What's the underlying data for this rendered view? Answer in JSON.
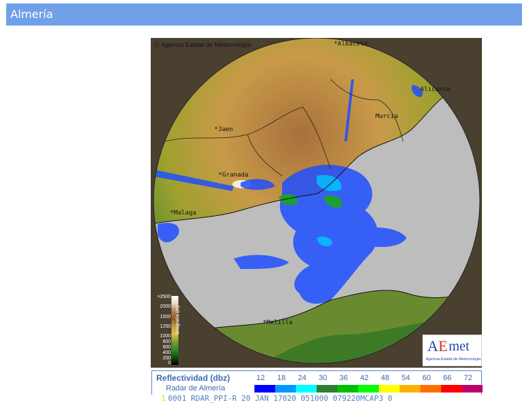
{
  "header": {
    "title": "Almería"
  },
  "radar": {
    "copyright": "Ⓒ Agencia Estatal de Meteorología",
    "cities": [
      {
        "name": "*Albacete"
      },
      {
        "name": "Alicante"
      },
      {
        "name": "*Jaen"
      },
      {
        "name": "*Granada"
      },
      {
        "name": "*Malaga"
      },
      {
        "name": "Murcia"
      },
      {
        "name": "*Melilla"
      }
    ],
    "orography": {
      "title": "Orografía (m)",
      "levels": [
        ">2500",
        "2000",
        "1500",
        "1250",
        "1000",
        "800",
        "600",
        "400",
        "200",
        "0"
      ]
    },
    "logo": {
      "a": "A",
      "e": "E",
      "rest": "met",
      "subtitle": "Agencia Estatal de Meteorología"
    }
  },
  "legend": {
    "title": "Reflectividad (dbz)",
    "subtitle": "Radar de Almería",
    "values": [
      "12",
      "18",
      "24",
      "30",
      "36",
      "42",
      "48",
      "54",
      "60",
      "66",
      "72"
    ],
    "colors": [
      "#0000ff",
      "#0099ff",
      "#00ffff",
      "#2e7d32",
      "#00c000",
      "#00ff00",
      "#ffff00",
      "#ffb000",
      "#ff7000",
      "#ff0000",
      "#c0006a"
    ]
  },
  "status": {
    "number": "1",
    "text": "0001 RDAR_PPI-R   20 JAN 17020 051000  079220MCAP3 0"
  }
}
